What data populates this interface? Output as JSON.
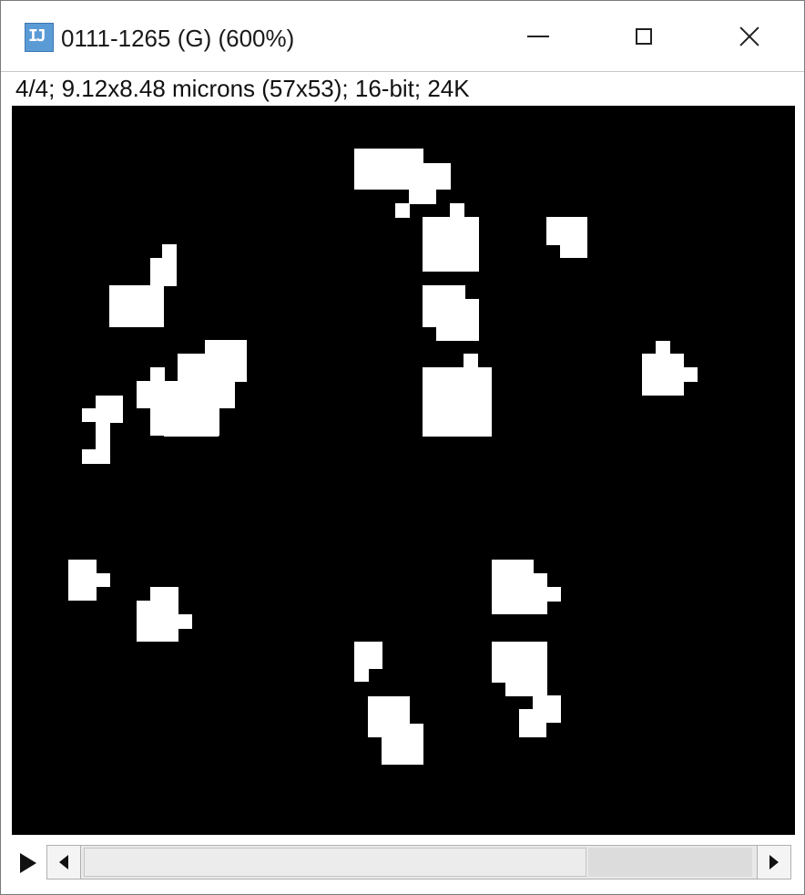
{
  "window": {
    "title": "0111-1265 (G) (600%)",
    "icon": "imagej-icon",
    "controls": {
      "minimize": "minimize-icon",
      "maximize": "maximize-icon",
      "close": "close-icon"
    }
  },
  "info": {
    "text": "4/4; 9.12x8.48 microns (57x53); 16-bit; 24K"
  },
  "image": {
    "background_color": "#000000",
    "foreground_color": "#ffffff",
    "description_hidden": "binary mask image"
  },
  "stack_controls": {
    "play_icon": "play-icon",
    "scroll_left_icon": "arrow-left-icon",
    "scroll_right_icon": "arrow-right-icon",
    "slice_position": 1.0
  }
}
